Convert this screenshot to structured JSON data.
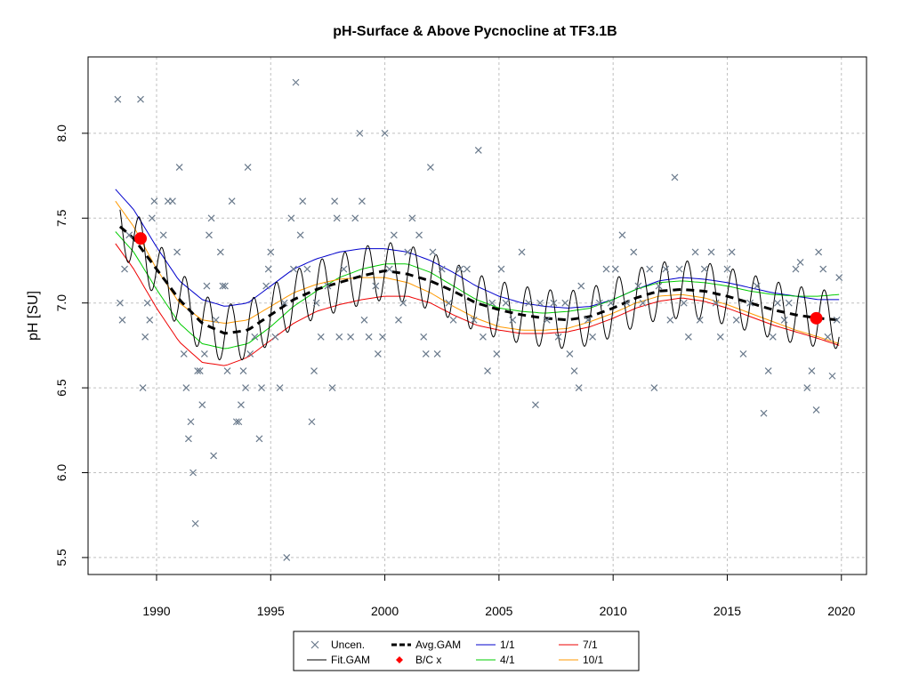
{
  "chart_data": {
    "type": "line",
    "title": "pH-Surface & Above Pycnocline at TF3.1B",
    "xlabel": "",
    "ylabel": "pH [SU]",
    "xlim": [
      1987.0,
      2021.1
    ],
    "ylim": [
      5.4,
      8.45
    ],
    "x_ticks": [
      1990,
      1995,
      2000,
      2005,
      2010,
      2015,
      2020
    ],
    "y_ticks": [
      5.5,
      6.0,
      6.5,
      7.0,
      7.5,
      8.0
    ],
    "y_tick_labels": [
      "5.5",
      "6.0",
      "6.5",
      "7.0",
      "7.5",
      "8.0"
    ],
    "grid": true,
    "legend_position": "bottom-center",
    "colors": {
      "uncen": "#6a7a8c",
      "fit_gam": "#000000",
      "avg_gam": "#000000",
      "bc": "#ff0000",
      "s1_1": "#0000cc",
      "s4_1": "#00cc00",
      "s7_1": "#ee0000",
      "s10_1": "#ff9900"
    },
    "legend": [
      {
        "label": "Uncen.",
        "key": "uncen"
      },
      {
        "label": "Fit.GAM",
        "key": "fit_gam"
      },
      {
        "label": "Avg.GAM",
        "key": "avg_gam"
      },
      {
        "label": "B/C x",
        "key": "bc"
      },
      {
        "label": "1/1",
        "key": "s1_1"
      },
      {
        "label": "4/1",
        "key": "s4_1"
      },
      {
        "label": "7/1",
        "key": "s7_1"
      },
      {
        "label": "10/1",
        "key": "s10_1"
      }
    ],
    "avg_gam": {
      "name": "Avg.GAM",
      "x": [
        1988.4,
        1989.0,
        1990.0,
        1991.0,
        1992.0,
        1993.0,
        1994.0,
        1995.0,
        1996.0,
        1997.0,
        1998.0,
        1999.0,
        2000.0,
        2001.0,
        2002.0,
        2003.0,
        2004.0,
        2005.0,
        2006.0,
        2007.0,
        2008.0,
        2009.0,
        2010.0,
        2011.0,
        2012.0,
        2013.0,
        2014.0,
        2015.0,
        2016.0,
        2017.0,
        2018.0,
        2019.0,
        2019.9
      ],
      "y": [
        7.45,
        7.38,
        7.2,
        7.02,
        6.88,
        6.82,
        6.84,
        6.93,
        7.02,
        7.08,
        7.12,
        7.16,
        7.19,
        7.17,
        7.13,
        7.07,
        7.0,
        6.96,
        6.93,
        6.91,
        6.9,
        6.92,
        6.97,
        7.03,
        7.07,
        7.08,
        7.07,
        7.04,
        7.0,
        6.96,
        6.93,
        6.91,
        6.9
      ]
    },
    "fit_gam": {
      "name": "Fit.GAM",
      "seasonal_amplitude": 0.17
    },
    "seasonal_series": [
      {
        "name": "1/1",
        "x": [
          1988.2,
          1989.0,
          1990.0,
          1991.0,
          1992.0,
          1993.0,
          1994.0,
          1995.0,
          1996.0,
          1997.0,
          1998.0,
          1999.0,
          2000.0,
          2001.0,
          2002.0,
          2003.0,
          2004.0,
          2005.0,
          2006.0,
          2007.0,
          2008.0,
          2009.0,
          2010.0,
          2011.0,
          2012.0,
          2013.0,
          2014.0,
          2015.0,
          2016.0,
          2017.0,
          2018.0,
          2019.0,
          2019.9
        ],
        "y": [
          7.67,
          7.55,
          7.33,
          7.13,
          7.02,
          6.98,
          7.0,
          7.1,
          7.2,
          7.26,
          7.3,
          7.32,
          7.32,
          7.3,
          7.25,
          7.18,
          7.1,
          7.04,
          7.0,
          6.98,
          6.97,
          6.98,
          7.02,
          7.08,
          7.13,
          7.15,
          7.14,
          7.12,
          7.09,
          7.06,
          7.04,
          7.02,
          7.02
        ]
      },
      {
        "name": "4/1",
        "x": [
          1988.2,
          1989.0,
          1990.0,
          1991.0,
          1992.0,
          1993.0,
          1994.0,
          1995.0,
          1996.0,
          1997.0,
          1998.0,
          1999.0,
          2000.0,
          2001.0,
          2002.0,
          2003.0,
          2004.0,
          2005.0,
          2006.0,
          2007.0,
          2008.0,
          2009.0,
          2010.0,
          2011.0,
          2012.0,
          2013.0,
          2014.0,
          2015.0,
          2016.0,
          2017.0,
          2018.0,
          2019.0,
          2019.9
        ],
        "y": [
          7.42,
          7.3,
          7.08,
          6.88,
          6.76,
          6.73,
          6.76,
          6.86,
          6.98,
          7.07,
          7.15,
          7.2,
          7.23,
          7.23,
          7.18,
          7.1,
          7.02,
          6.97,
          6.95,
          6.94,
          6.95,
          6.97,
          7.02,
          7.08,
          7.12,
          7.13,
          7.12,
          7.1,
          7.07,
          7.05,
          7.04,
          7.04,
          7.05
        ]
      },
      {
        "name": "7/1",
        "x": [
          1988.2,
          1989.0,
          1990.0,
          1991.0,
          1992.0,
          1993.0,
          1994.0,
          1995.0,
          1996.0,
          1997.0,
          1998.0,
          1999.0,
          2000.0,
          2001.0,
          2002.0,
          2003.0,
          2004.0,
          2005.0,
          2006.0,
          2007.0,
          2008.0,
          2009.0,
          2010.0,
          2011.0,
          2012.0,
          2013.0,
          2014.0,
          2015.0,
          2016.0,
          2017.0,
          2018.0,
          2019.0,
          2019.9
        ],
        "y": [
          7.35,
          7.2,
          6.97,
          6.77,
          6.65,
          6.63,
          6.68,
          6.78,
          6.88,
          6.95,
          6.99,
          7.02,
          7.04,
          7.04,
          7.0,
          6.93,
          6.87,
          6.84,
          6.82,
          6.82,
          6.83,
          6.86,
          6.91,
          6.97,
          7.01,
          7.03,
          7.01,
          6.97,
          6.92,
          6.87,
          6.83,
          6.79,
          6.75
        ]
      },
      {
        "name": "10/1",
        "x": [
          1988.2,
          1989.0,
          1990.0,
          1991.0,
          1992.0,
          1993.0,
          1994.0,
          1995.0,
          1996.0,
          1997.0,
          1998.0,
          1999.0,
          2000.0,
          2001.0,
          2002.0,
          2003.0,
          2004.0,
          2005.0,
          2006.0,
          2007.0,
          2008.0,
          2009.0,
          2010.0,
          2011.0,
          2012.0,
          2013.0,
          2014.0,
          2015.0,
          2016.0,
          2017.0,
          2018.0,
          2019.0,
          2019.9
        ],
        "y": [
          7.6,
          7.45,
          7.2,
          7.0,
          6.9,
          6.88,
          6.9,
          6.98,
          7.06,
          7.11,
          7.14,
          7.15,
          7.15,
          7.12,
          7.06,
          6.98,
          6.91,
          6.86,
          6.84,
          6.84,
          6.85,
          6.89,
          6.94,
          7.0,
          7.04,
          7.05,
          7.03,
          6.99,
          6.94,
          6.89,
          6.84,
          6.8,
          6.76
        ]
      }
    ],
    "bc_points": [
      {
        "x": 1989.3,
        "y": 7.38
      },
      {
        "x": 2018.9,
        "y": 6.91
      }
    ],
    "uncen_points": [
      [
        1988.3,
        8.2
      ],
      [
        1988.4,
        7.0
      ],
      [
        1988.5,
        6.9
      ],
      [
        1988.6,
        7.2
      ],
      [
        1988.8,
        7.4
      ],
      [
        1989.3,
        8.2
      ],
      [
        1989.4,
        6.5
      ],
      [
        1989.5,
        6.8
      ],
      [
        1989.6,
        7.0
      ],
      [
        1989.7,
        6.9
      ],
      [
        1989.8,
        7.5
      ],
      [
        1989.9,
        7.6
      ],
      [
        1990.3,
        7.4
      ],
      [
        1990.5,
        7.6
      ],
      [
        1990.7,
        7.6
      ],
      [
        1990.9,
        7.3
      ],
      [
        1991.0,
        7.8
      ],
      [
        1991.2,
        6.7
      ],
      [
        1991.3,
        6.5
      ],
      [
        1991.4,
        6.2
      ],
      [
        1991.5,
        6.3
      ],
      [
        1991.6,
        6.0
      ],
      [
        1991.7,
        5.7
      ],
      [
        1991.8,
        6.6
      ],
      [
        1991.9,
        6.6
      ],
      [
        1992.0,
        6.4
      ],
      [
        1992.1,
        6.7
      ],
      [
        1992.2,
        7.1
      ],
      [
        1992.3,
        7.4
      ],
      [
        1992.4,
        7.5
      ],
      [
        1992.5,
        6.1
      ],
      [
        1992.6,
        6.9
      ],
      [
        1992.8,
        7.3
      ],
      [
        1992.9,
        7.1
      ],
      [
        1993.0,
        7.1
      ],
      [
        1993.1,
        6.6
      ],
      [
        1993.3,
        7.6
      ],
      [
        1993.5,
        6.3
      ],
      [
        1993.6,
        6.3
      ],
      [
        1993.7,
        6.4
      ],
      [
        1993.8,
        6.6
      ],
      [
        1993.9,
        6.5
      ],
      [
        1994.0,
        7.8
      ],
      [
        1994.1,
        6.7
      ],
      [
        1994.3,
        6.8
      ],
      [
        1994.5,
        6.2
      ],
      [
        1994.6,
        6.5
      ],
      [
        1994.8,
        7.1
      ],
      [
        1994.9,
        7.2
      ],
      [
        1995.0,
        7.3
      ],
      [
        1995.2,
        6.8
      ],
      [
        1995.4,
        6.5
      ],
      [
        1995.6,
        7.0
      ],
      [
        1995.7,
        5.5
      ],
      [
        1995.9,
        7.5
      ],
      [
        1996.0,
        7.2
      ],
      [
        1996.1,
        8.3
      ],
      [
        1996.3,
        7.4
      ],
      [
        1996.4,
        7.6
      ],
      [
        1996.6,
        7.2
      ],
      [
        1996.8,
        6.3
      ],
      [
        1996.9,
        6.6
      ],
      [
        1997.0,
        7.0
      ],
      [
        1997.2,
        6.8
      ],
      [
        1997.5,
        7.1
      ],
      [
        1997.7,
        6.5
      ],
      [
        1997.8,
        7.6
      ],
      [
        1997.9,
        7.5
      ],
      [
        1998.0,
        6.8
      ],
      [
        1998.2,
        7.2
      ],
      [
        1998.5,
        6.8
      ],
      [
        1998.7,
        7.5
      ],
      [
        1998.9,
        8.0
      ],
      [
        1999.0,
        7.6
      ],
      [
        1999.1,
        6.9
      ],
      [
        1999.3,
        6.8
      ],
      [
        1999.6,
        7.1
      ],
      [
        1999.7,
        6.7
      ],
      [
        1999.9,
        6.8
      ],
      [
        2000.0,
        8.0
      ],
      [
        2000.2,
        7.2
      ],
      [
        2000.4,
        7.4
      ],
      [
        2000.6,
        6.9
      ],
      [
        2000.8,
        7.0
      ],
      [
        2001.0,
        7.3
      ],
      [
        2001.2,
        7.5
      ],
      [
        2001.5,
        7.4
      ],
      [
        2001.7,
        6.8
      ],
      [
        2001.8,
        6.7
      ],
      [
        2002.0,
        7.8
      ],
      [
        2002.1,
        7.3
      ],
      [
        2002.3,
        6.7
      ],
      [
        2002.5,
        7.2
      ],
      [
        2002.8,
        7.0
      ],
      [
        2003.0,
        6.9
      ],
      [
        2003.3,
        7.2
      ],
      [
        2003.6,
        7.2
      ],
      [
        2003.9,
        6.9
      ],
      [
        2004.1,
        7.9
      ],
      [
        2004.3,
        6.8
      ],
      [
        2004.5,
        6.6
      ],
      [
        2004.7,
        7.0
      ],
      [
        2004.9,
        6.7
      ],
      [
        2005.1,
        7.2
      ],
      [
        2005.3,
        7.0
      ],
      [
        2005.6,
        6.9
      ],
      [
        2006.0,
        7.3
      ],
      [
        2006.3,
        7.0
      ],
      [
        2006.6,
        6.4
      ],
      [
        2006.8,
        7.0
      ],
      [
        2007.1,
        6.9
      ],
      [
        2007.4,
        7.0
      ],
      [
        2007.6,
        6.8
      ],
      [
        2007.9,
        7.0
      ],
      [
        2008.1,
        6.7
      ],
      [
        2008.3,
        6.6
      ],
      [
        2008.5,
        6.5
      ],
      [
        2008.6,
        7.1
      ],
      [
        2008.9,
        6.9
      ],
      [
        2009.1,
        6.8
      ],
      [
        2009.4,
        7.0
      ],
      [
        2009.7,
        7.2
      ],
      [
        2009.9,
        7.0
      ],
      [
        2010.1,
        7.2
      ],
      [
        2010.4,
        7.4
      ],
      [
        2010.6,
        7.0
      ],
      [
        2010.9,
        7.3
      ],
      [
        2011.1,
        7.1
      ],
      [
        2011.3,
        7.0
      ],
      [
        2011.6,
        7.2
      ],
      [
        2011.8,
        6.5
      ],
      [
        2012.0,
        7.1
      ],
      [
        2012.3,
        7.2
      ],
      [
        2012.5,
        6.9
      ],
      [
        2012.7,
        7.74
      ],
      [
        2012.9,
        7.2
      ],
      [
        2013.1,
        7.0
      ],
      [
        2013.3,
        6.8
      ],
      [
        2013.6,
        7.3
      ],
      [
        2013.8,
        6.9
      ],
      [
        2014.0,
        7.2
      ],
      [
        2014.3,
        7.3
      ],
      [
        2014.5,
        7.0
      ],
      [
        2014.7,
        6.8
      ],
      [
        2015.0,
        7.2
      ],
      [
        2015.2,
        7.3
      ],
      [
        2015.4,
        6.9
      ],
      [
        2015.7,
        6.7
      ],
      [
        2016.0,
        7.0
      ],
      [
        2016.3,
        7.1
      ],
      [
        2016.6,
        6.35
      ],
      [
        2016.8,
        6.6
      ],
      [
        2017.0,
        6.8
      ],
      [
        2017.2,
        7.0
      ],
      [
        2017.5,
        6.9
      ],
      [
        2017.7,
        7.0
      ],
      [
        2018.0,
        7.2
      ],
      [
        2018.2,
        7.24
      ],
      [
        2018.5,
        6.5
      ],
      [
        2018.7,
        6.6
      ],
      [
        2018.9,
        6.37
      ],
      [
        2019.0,
        7.3
      ],
      [
        2019.2,
        7.2
      ],
      [
        2019.4,
        6.8
      ],
      [
        2019.6,
        6.57
      ],
      [
        2019.8,
        6.9
      ],
      [
        2019.9,
        7.15
      ]
    ]
  }
}
